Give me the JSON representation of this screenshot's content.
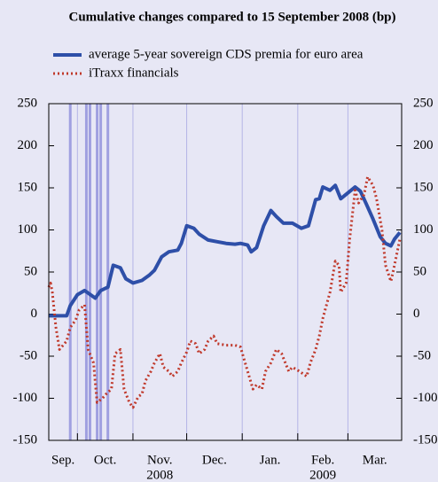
{
  "chart_data": {
    "type": "line",
    "title": "Cumulative changes compared to 15 September 2008 (bp)",
    "xlim": [
      0,
      197
    ],
    "month_starts": [
      16,
      47,
      77,
      108,
      139,
      167
    ],
    "months": [
      "Sep.",
      "Oct.",
      "Nov.",
      "Dec.",
      "Jan.",
      "Feb.",
      "Mar."
    ],
    "year_labels": [
      null,
      null,
      "2008",
      null,
      null,
      "2009",
      null
    ],
    "event_days": [
      12,
      21,
      23,
      27,
      29,
      33
    ],
    "ylim": [
      -150,
      250
    ],
    "yticks": [
      -150,
      -100,
      -50,
      0,
      50,
      100,
      150,
      200,
      250
    ],
    "y2lim": [
      -150,
      250
    ],
    "y2ticks": [
      -150,
      -100,
      -50,
      0,
      50,
      100,
      150,
      200,
      250
    ],
    "grid_color": "#b4b4e6",
    "event_color": "#a0a0e0",
    "series": [
      {
        "name": "average 5-year sovereign CDS premia for euro area",
        "color": "#2e4fa8",
        "style": "solid",
        "x": [
          0,
          10,
          12,
          16,
          20,
          22,
          26,
          29,
          33,
          36,
          40,
          43,
          47,
          52,
          56,
          59,
          63,
          67,
          72,
          74,
          77,
          81,
          84,
          89,
          94,
          99,
          104,
          107,
          111,
          113,
          116,
          120,
          124,
          127,
          131,
          136,
          141,
          145,
          149,
          151,
          153,
          157,
          160,
          163,
          167,
          171,
          174,
          177,
          181,
          185,
          188,
          191,
          193,
          196
        ],
        "values": [
          -2,
          -2,
          10,
          23,
          28,
          25,
          19,
          28,
          32,
          58,
          55,
          42,
          37,
          40,
          46,
          52,
          68,
          74,
          76,
          84,
          105,
          102,
          95,
          88,
          86,
          84,
          83,
          84,
          82,
          74,
          79,
          105,
          123,
          116,
          108,
          108,
          102,
          105,
          136,
          137,
          151,
          147,
          153,
          137,
          144,
          151,
          146,
          132,
          113,
          92,
          84,
          81,
          89,
          97
        ]
      },
      {
        "name": "iTraxx financials",
        "color": "#c0392b",
        "style": "dotted",
        "x": [
          0,
          1,
          2,
          4,
          6,
          10,
          12,
          15,
          17,
          20,
          22,
          25,
          27,
          30,
          32,
          35,
          37,
          40,
          42,
          45,
          47,
          50,
          52,
          54,
          57,
          59,
          62,
          64,
          67,
          69,
          72,
          74,
          77,
          79,
          82,
          84,
          87,
          89,
          92,
          94,
          99,
          104,
          107,
          111,
          114,
          116,
          119,
          121,
          124,
          127,
          130,
          134,
          136,
          140,
          144,
          146,
          149,
          151,
          153,
          157,
          160,
          162,
          163,
          166,
          168,
          171,
          173,
          176,
          178,
          181,
          183,
          186,
          188,
          191,
          193,
          196
        ],
        "values": [
          32,
          37,
          26,
          -16,
          -42,
          -32,
          -16,
          -7,
          5,
          11,
          -42,
          -58,
          -105,
          -100,
          -95,
          -89,
          -47,
          -42,
          -89,
          -105,
          -111,
          -98,
          -95,
          -79,
          -68,
          -58,
          -47,
          -63,
          -68,
          -74,
          -68,
          -58,
          -45,
          -32,
          -35,
          -47,
          -42,
          -32,
          -26,
          -35,
          -37,
          -37,
          -39,
          -68,
          -89,
          -84,
          -89,
          -68,
          -58,
          -42,
          -47,
          -68,
          -63,
          -68,
          -74,
          -58,
          -42,
          -26,
          -5,
          26,
          63,
          58,
          26,
          37,
          89,
          147,
          132,
          142,
          163,
          153,
          137,
          100,
          58,
          39,
          58,
          89
        ]
      }
    ]
  }
}
